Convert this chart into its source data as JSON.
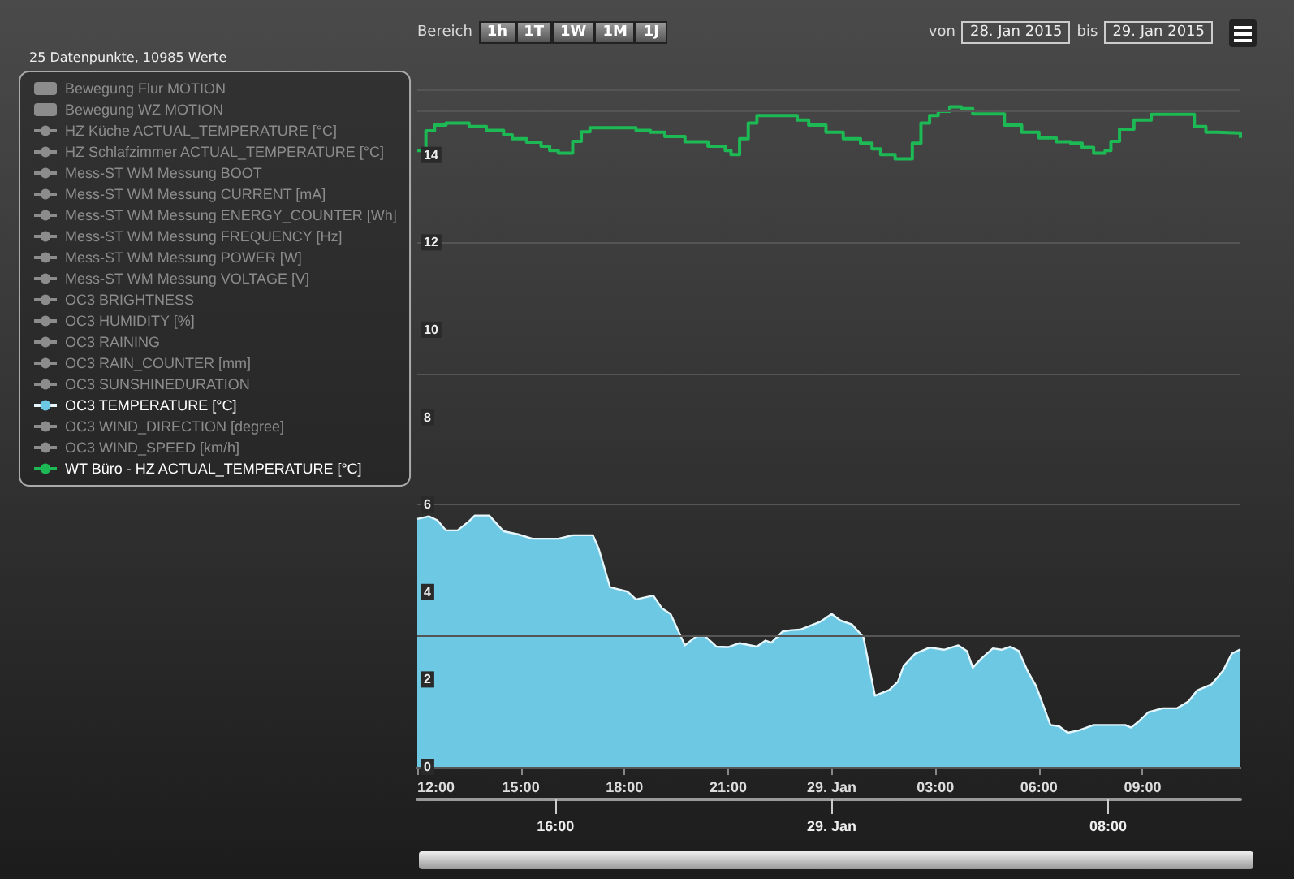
{
  "chart_data": {
    "type": "line",
    "subtitle": "25 Datenpunkte, 10985 Werte",
    "annotations": [
      "Bereich",
      "1h",
      "1T",
      "1W",
      "1M",
      "1J",
      "von",
      "28. Jan 2015",
      "bis",
      "29. Jan 2015"
    ],
    "xlim": [
      "2015-01-28T12:00",
      "2015-01-29T11:50"
    ],
    "xticks": [
      {
        "value": "2015-01-28T12:00",
        "label": "12:00"
      },
      {
        "value": "2015-01-28T15:00",
        "label": "15:00"
      },
      {
        "value": "2015-01-28T18:00",
        "label": "18:00"
      },
      {
        "value": "2015-01-28T21:00",
        "label": "21:00"
      },
      {
        "value": "2015-01-29T00:00",
        "label": "29. Jan"
      },
      {
        "value": "2015-01-29T03:00",
        "label": "03:00"
      },
      {
        "value": "2015-01-29T06:00",
        "label": "06:00"
      },
      {
        "value": "2015-01-29T09:00",
        "label": "09:00"
      }
    ],
    "x2lim": [
      "2015-01-28T12:00",
      "2015-01-29T11:50"
    ],
    "x2ticks": [
      {
        "value": "2015-01-28T16:00",
        "label": "16:00"
      },
      {
        "value": "2015-01-29T00:00",
        "label": "29. Jan"
      },
      {
        "value": "2015-01-29T08:00",
        "label": "08:00"
      }
    ],
    "ylim": [
      0,
      15.5
    ],
    "yticks": [
      0,
      2,
      4,
      6,
      8,
      10,
      12,
      14
    ],
    "grid": "y",
    "legend": "left",
    "marker": "none",
    "series": [
      {
        "name": "Bewegung Flur MOTION",
        "type": "bar",
        "color": "#8c8c8c"
      },
      {
        "name": "Bewegung WZ MOTION",
        "type": "bar",
        "color": "#8c8c8c"
      },
      {
        "name": "HZ Küche ACTUAL_TEMPERATURE [°C]",
        "color": "#8c8c8c"
      },
      {
        "name": "HZ Schlafzimmer ACTUAL_TEMPERATURE [°C]",
        "color": "#8c8c8c"
      },
      {
        "name": "Mess-ST WM Messung BOOT",
        "color": "#8c8c8c"
      },
      {
        "name": "Mess-ST WM Messung CURRENT [mA]",
        "color": "#8c8c8c"
      },
      {
        "name": "Mess-ST WM Messung ENERGY_COUNTER [Wh]",
        "color": "#8c8c8c"
      },
      {
        "name": "Mess-ST WM Messung FREQUENCY [Hz]",
        "color": "#8c8c8c"
      },
      {
        "name": "Mess-ST WM Messung POWER [W]",
        "color": "#8c8c8c"
      },
      {
        "name": "Mess-ST WM Messung VOLTAGE [V]",
        "color": "#8c8c8c"
      },
      {
        "name": "OC3 BRIGHTNESS",
        "color": "#8c8c8c"
      },
      {
        "name": "OC3 HUMIDITY [%]",
        "color": "#8c8c8c"
      },
      {
        "name": "OC3 RAINING",
        "color": "#8c8c8c"
      },
      {
        "name": "OC3 RAIN_COUNTER [mm]",
        "color": "#8c8c8c"
      },
      {
        "name": "OC3 SUNSHINEDURATION",
        "color": "#8c8c8c"
      },
      {
        "name": "OC3 TEMPERATURE [°C]",
        "type": "area",
        "color": "#6cc8e3",
        "x": [
          "2015-01-28T12:00",
          "2015-01-28T12:20",
          "2015-01-28T12:35",
          "2015-01-28T12:50",
          "2015-01-28T13:10",
          "2015-01-28T13:30",
          "2015-01-28T13:40",
          "2015-01-28T14:05",
          "2015-01-28T14:30",
          "2015-01-28T14:55",
          "2015-01-28T15:20",
          "2015-01-28T16:05",
          "2015-01-28T16:30",
          "2015-01-28T17:05",
          "2015-01-28T17:15",
          "2015-01-28T17:35",
          "2015-01-28T18:05",
          "2015-01-28T18:20",
          "2015-01-28T18:50",
          "2015-01-28T19:05",
          "2015-01-28T19:20",
          "2015-01-28T19:45",
          "2015-01-28T20:05",
          "2015-01-28T20:20",
          "2015-01-28T20:40",
          "2015-01-28T21:00",
          "2015-01-28T21:20",
          "2015-01-28T21:50",
          "2015-01-28T22:05",
          "2015-01-28T22:15",
          "2015-01-28T22:35",
          "2015-01-28T22:50",
          "2015-01-28T23:05",
          "2015-01-28T23:40",
          "2015-01-29T00:00",
          "2015-01-29T00:15",
          "2015-01-29T00:35",
          "2015-01-29T00:55",
          "2015-01-29T01:15",
          "2015-01-29T01:40",
          "2015-01-29T01:55",
          "2015-01-29T02:05",
          "2015-01-29T02:25",
          "2015-01-29T02:50",
          "2015-01-29T03:15",
          "2015-01-29T03:40",
          "2015-01-29T03:55",
          "2015-01-29T04:05",
          "2015-01-29T04:20",
          "2015-01-29T04:40",
          "2015-01-29T04:55",
          "2015-01-29T05:10",
          "2015-01-29T05:25",
          "2015-01-29T05:40",
          "2015-01-29T05:55",
          "2015-01-29T06:20",
          "2015-01-29T06:35",
          "2015-01-29T06:50",
          "2015-01-29T07:10",
          "2015-01-29T07:35",
          "2015-01-29T08:30",
          "2015-01-29T08:40",
          "2015-01-29T08:55",
          "2015-01-29T09:10",
          "2015-01-29T09:35",
          "2015-01-29T10:00",
          "2015-01-29T10:20",
          "2015-01-29T10:35",
          "2015-01-29T11:00",
          "2015-01-29T11:20",
          "2015-01-29T11:35",
          "2015-01-29T11:50"
        ],
        "values": [
          5.67,
          5.73,
          5.64,
          5.41,
          5.41,
          5.62,
          5.75,
          5.75,
          5.39,
          5.32,
          5.22,
          5.22,
          5.3,
          5.3,
          5.0,
          4.11,
          4.01,
          3.83,
          3.92,
          3.63,
          3.5,
          2.78,
          2.99,
          2.99,
          2.75,
          2.74,
          2.83,
          2.75,
          2.89,
          2.84,
          3.1,
          3.13,
          3.14,
          3.32,
          3.5,
          3.35,
          3.26,
          2.97,
          1.63,
          1.76,
          1.95,
          2.31,
          2.59,
          2.73,
          2.68,
          2.78,
          2.65,
          2.27,
          2.48,
          2.71,
          2.68,
          2.75,
          2.65,
          2.2,
          1.85,
          0.96,
          0.93,
          0.78,
          0.84,
          0.96,
          0.96,
          0.9,
          1.06,
          1.25,
          1.34,
          1.34,
          1.5,
          1.75,
          1.89,
          2.2,
          2.59,
          2.69
        ]
      },
      {
        "name": "OC3 WIND_DIRECTION [degree]",
        "color": "#8c8c8c"
      },
      {
        "name": "OC3 WIND_SPEED [km/h]",
        "color": "#8c8c8c"
      },
      {
        "name": "WT Büro - HZ ACTUAL_TEMPERATURE [°C]",
        "type": "step",
        "color": "#1db954",
        "x": [
          "2015-01-28T12:00",
          "2015-01-28T12:15",
          "2015-01-28T12:30",
          "2015-01-28T12:50",
          "2015-01-28T13:30",
          "2015-01-28T14:00",
          "2015-01-28T14:30",
          "2015-01-28T14:45",
          "2015-01-28T15:10",
          "2015-01-28T15:35",
          "2015-01-28T15:50",
          "2015-01-28T16:05",
          "2015-01-28T16:30",
          "2015-01-28T16:45",
          "2015-01-28T17:00",
          "2015-01-28T18:20",
          "2015-01-28T18:45",
          "2015-01-28T19:10",
          "2015-01-28T19:45",
          "2015-01-28T20:25",
          "2015-01-28T20:55",
          "2015-01-28T21:05",
          "2015-01-28T21:20",
          "2015-01-28T21:35",
          "2015-01-28T21:50",
          "2015-01-28T23:00",
          "2015-01-28T23:20",
          "2015-01-28T23:50",
          "2015-01-29T00:20",
          "2015-01-29T00:50",
          "2015-01-29T01:10",
          "2015-01-29T01:25",
          "2015-01-29T01:50",
          "2015-01-29T02:20",
          "2015-01-29T02:35",
          "2015-01-29T02:50",
          "2015-01-29T03:05",
          "2015-01-29T03:25",
          "2015-01-29T03:45",
          "2015-01-29T04:05",
          "2015-01-29T05:00",
          "2015-01-29T05:30",
          "2015-01-29T06:00",
          "2015-01-29T06:30",
          "2015-01-29T06:55",
          "2015-01-29T07:15",
          "2015-01-29T07:35",
          "2015-01-29T07:55",
          "2015-01-29T08:05",
          "2015-01-29T08:20",
          "2015-01-29T08:45",
          "2015-01-29T09:15",
          "2015-01-29T10:30",
          "2015-01-29T10:50",
          "2015-01-29T11:10",
          "2015-01-29T11:50"
        ],
        "values": [
          14.1,
          14.55,
          14.68,
          14.73,
          14.65,
          14.56,
          14.46,
          14.37,
          14.29,
          14.2,
          14.1,
          14.04,
          14.31,
          14.53,
          14.62,
          14.56,
          14.52,
          14.42,
          14.3,
          14.2,
          14.1,
          14.01,
          14.37,
          14.73,
          14.9,
          14.8,
          14.68,
          14.52,
          14.37,
          14.27,
          14.14,
          14.01,
          13.91,
          14.27,
          14.73,
          14.9,
          15.0,
          15.1,
          15.06,
          14.94,
          14.68,
          14.52,
          14.39,
          14.3,
          14.27,
          14.17,
          14.04,
          14.1,
          14.31,
          14.59,
          14.8,
          14.93,
          14.65,
          14.52,
          14.5,
          14.39
        ]
      }
    ]
  }
}
